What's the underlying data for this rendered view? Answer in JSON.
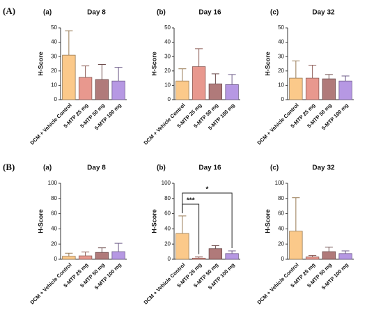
{
  "figure_labels": [
    "(A)",
    "(B)"
  ],
  "chart_data": [
    {
      "type": "bar",
      "panel": "(a)",
      "title": "Day 8",
      "y_label": "H-Score",
      "categories": [
        "DCM + Vehicle Control",
        "5-MTP 25 mg",
        "5-MTP 50 mg",
        "5-MTP 100 mg"
      ],
      "values": [
        31,
        15.5,
        14,
        13
      ],
      "errors": [
        17,
        8,
        10.5,
        9.5
      ],
      "colors": [
        "#fbc98a",
        "#e8988e",
        "#b07a7a",
        "#b698e3"
      ],
      "ylim": [
        0,
        50
      ],
      "yticks": [
        0,
        10,
        20,
        30,
        40,
        50
      ]
    },
    {
      "type": "bar",
      "panel": "(b)",
      "title": "Day 16",
      "y_label": "H-Score",
      "categories": [
        "DCM + Vehicle Control",
        "5-MTP 25 mg",
        "5-MTP 50 mg",
        "5-MTP 100 mg"
      ],
      "values": [
        13,
        23,
        11,
        10.5
      ],
      "errors": [
        8.5,
        12.5,
        7,
        7
      ],
      "colors": [
        "#fbc98a",
        "#e8988e",
        "#b07a7a",
        "#b698e3"
      ],
      "ylim": [
        0,
        50
      ],
      "yticks": [
        0,
        10,
        20,
        30,
        40,
        50
      ]
    },
    {
      "type": "bar",
      "panel": "(c)",
      "title": "Day 32",
      "y_label": "H-Score",
      "categories": [
        "DCM + Vehicle Control",
        "5-MTP 25 mg",
        "5-MTP 50 mg",
        "5-MTP 100 mg"
      ],
      "values": [
        15,
        15,
        14.5,
        13
      ],
      "errors": [
        12,
        9,
        3,
        3.5
      ],
      "colors": [
        "#fbc98a",
        "#e8988e",
        "#b07a7a",
        "#b698e3"
      ],
      "ylim": [
        0,
        50
      ],
      "yticks": [
        0,
        10,
        20,
        30,
        40,
        50
      ]
    },
    {
      "type": "bar",
      "panel": "(a)",
      "title": "Day 8",
      "y_label": "H-Score",
      "categories": [
        "DCM + Vehicle Control",
        "5-MTP 25 mg",
        "5-MTP 50 mg",
        "5-MTP 100 mg"
      ],
      "values": [
        4,
        4.5,
        9,
        10
      ],
      "errors": [
        4,
        5,
        6,
        11
      ],
      "colors": [
        "#fbc98a",
        "#e8988e",
        "#b07a7a",
        "#b698e3"
      ],
      "ylim": [
        0,
        100
      ],
      "yticks": [
        0,
        20,
        40,
        60,
        80,
        100
      ]
    },
    {
      "type": "bar",
      "panel": "(b)",
      "title": "Day 16",
      "y_label": "H-Score",
      "categories": [
        "DCM + Vehicle Control",
        "5-MTP 25 mg",
        "5-MTP 50 mg",
        "5-MTP 100 mg"
      ],
      "values": [
        34,
        1.5,
        14,
        7.5
      ],
      "errors": [
        23,
        1.5,
        4,
        3.5
      ],
      "colors": [
        "#fbc98a",
        "#e8988e",
        "#b07a7a",
        "#b698e3"
      ],
      "ylim": [
        0,
        100
      ],
      "yticks": [
        0,
        20,
        40,
        60,
        80,
        100
      ],
      "comparisons": [
        {
          "label": "***",
          "groups": [
            "DCM + Vehicle Control",
            "5-MTP 25 mg"
          ]
        },
        {
          "label": "*",
          "groups": [
            "DCM + Vehicle Control",
            "5-MTP 100 mg"
          ]
        }
      ]
    },
    {
      "type": "bar",
      "panel": "(c)",
      "title": "Day 32",
      "y_label": "H-Score",
      "categories": [
        "DCM + Vehicle Control",
        "5-MTP 25 mg",
        "5-MTP 50 mg",
        "5-MTP 100 mg"
      ],
      "values": [
        37,
        3,
        10,
        7.5
      ],
      "errors": [
        44,
        2,
        6,
        3.5
      ],
      "colors": [
        "#fbc98a",
        "#e8988e",
        "#b07a7a",
        "#b698e3"
      ],
      "ylim": [
        0,
        100
      ],
      "yticks": [
        0,
        20,
        40,
        60,
        80,
        100
      ]
    }
  ]
}
